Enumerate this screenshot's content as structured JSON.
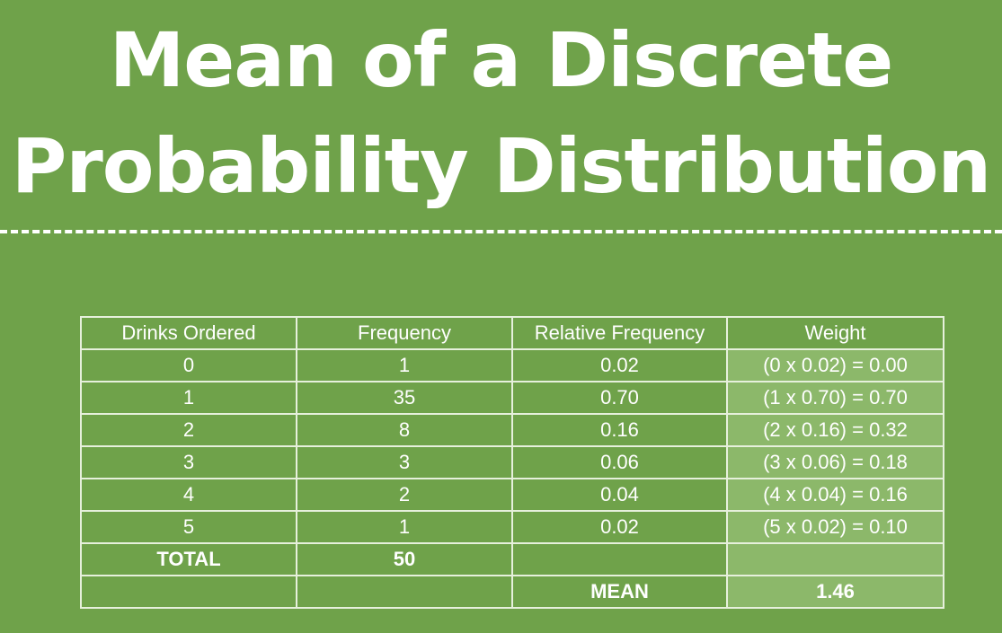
{
  "title": {
    "line1": "Mean of a Discrete",
    "line2": "Probability Distribution"
  },
  "table": {
    "headers": [
      "Drinks Ordered",
      "Frequency",
      "Relative Frequency",
      "Weight"
    ],
    "rows": [
      [
        "0",
        "1",
        "0.02",
        "(0 x 0.02) = 0.00"
      ],
      [
        "1",
        "35",
        "0.70",
        "(1 x 0.70) = 0.70"
      ],
      [
        "2",
        "8",
        "0.16",
        "(2 x 0.16) = 0.32"
      ],
      [
        "3",
        "3",
        "0.06",
        "(3 x 0.06) = 0.18"
      ],
      [
        "4",
        "2",
        "0.04",
        "(4 x 0.04) = 0.16"
      ],
      [
        "5",
        "1",
        "0.02",
        "(5 x 0.02) = 0.10"
      ]
    ],
    "total_label": "TOTAL",
    "total_frequency": "50",
    "mean_label": "MEAN",
    "mean_value": "1.46"
  },
  "colors": {
    "background": "#6fa24a",
    "weight_column": "#8cb86a",
    "text": "#ffffff"
  }
}
